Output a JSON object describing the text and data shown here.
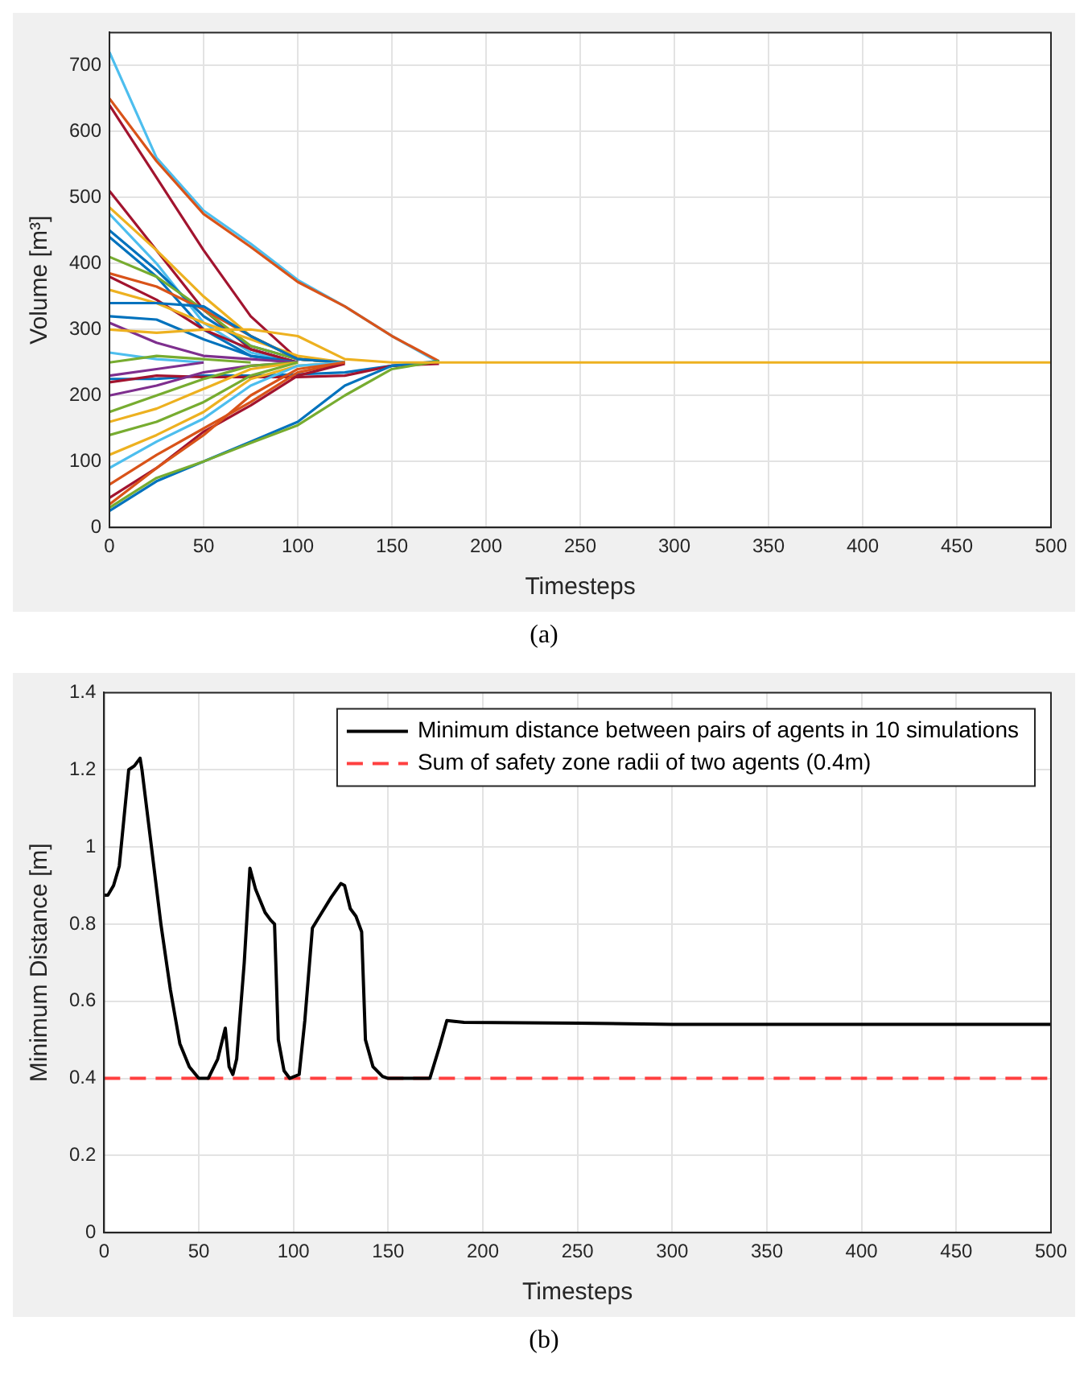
{
  "chart_data": [
    {
      "type": "line",
      "xlabel": "Timesteps",
      "ylabel": "Volume [m³]",
      "annotations": [
        "(a)"
      ],
      "x": [
        0,
        25,
        50,
        75,
        100,
        125,
        150,
        175,
        200,
        500
      ],
      "xlim": [
        0,
        500
      ],
      "xticks": [
        0,
        50,
        100,
        150,
        200,
        250,
        300,
        350,
        400,
        450,
        500
      ],
      "ylim": [
        0,
        750
      ],
      "yticks": [
        0,
        100,
        200,
        300,
        400,
        500,
        600,
        700
      ],
      "grid": true,
      "legend": false,
      "marker": "none",
      "line_style": "solid",
      "series": [
        {
          "color": "#4dbeee",
          "values": [
            720,
            560,
            480,
            430,
            375,
            335,
            290,
            250,
            null,
            null
          ]
        },
        {
          "color": "#d95319",
          "values": [
            650,
            555,
            475,
            425,
            372,
            335,
            290,
            252,
            null,
            null
          ]
        },
        {
          "color": "#a2142f",
          "values": [
            640,
            530,
            420,
            320,
            255,
            250,
            null,
            null,
            null,
            null
          ]
        },
        {
          "color": "#a2142f",
          "values": [
            510,
            420,
            330,
            270,
            250,
            null,
            null,
            null,
            null,
            null
          ]
        },
        {
          "color": "#edb120",
          "values": [
            485,
            420,
            350,
            290,
            255,
            250,
            null,
            null,
            null,
            null
          ]
        },
        {
          "color": "#4dbeee",
          "values": [
            475,
            400,
            310,
            265,
            250,
            null,
            null,
            null,
            null,
            null
          ]
        },
        {
          "color": "#0072bd",
          "values": [
            450,
            390,
            320,
            275,
            255,
            250,
            null,
            null,
            null,
            null
          ]
        },
        {
          "color": "#0072bd",
          "values": [
            440,
            380,
            300,
            260,
            250,
            null,
            null,
            null,
            null,
            null
          ]
        },
        {
          "color": "#77ac30",
          "values": [
            410,
            380,
            330,
            275,
            255,
            250,
            null,
            null,
            null,
            null
          ]
        },
        {
          "color": "#d95319",
          "values": [
            385,
            365,
            330,
            290,
            255,
            250,
            null,
            null,
            null,
            null
          ]
        },
        {
          "color": "#a2142f",
          "values": [
            380,
            345,
            300,
            270,
            250,
            null,
            null,
            null,
            null,
            null
          ]
        },
        {
          "color": "#edb120",
          "values": [
            360,
            340,
            310,
            285,
            260,
            250,
            null,
            null,
            null,
            null
          ]
        },
        {
          "color": "#0072bd",
          "values": [
            340,
            340,
            335,
            290,
            255,
            250,
            null,
            null,
            null,
            null
          ]
        },
        {
          "color": "#0072bd",
          "values": [
            320,
            315,
            285,
            260,
            250,
            null,
            null,
            null,
            null,
            null
          ]
        },
        {
          "color": "#7e2f8e",
          "values": [
            310,
            280,
            260,
            255,
            250,
            null,
            null,
            null,
            null,
            null
          ]
        },
        {
          "color": "#4dbeee",
          "values": [
            265,
            255,
            250,
            null,
            null,
            null,
            null,
            null,
            null,
            null
          ]
        },
        {
          "color": "#77ac30",
          "values": [
            250,
            260,
            255,
            250,
            null,
            null,
            null,
            null,
            null,
            null
          ]
        },
        {
          "color": "#7e2f8e",
          "values": [
            230,
            240,
            250,
            null,
            null,
            null,
            null,
            null,
            null,
            null
          ]
        },
        {
          "color": "#0072bd",
          "values": [
            225,
            225,
            230,
            230,
            232,
            235,
            245,
            250,
            null,
            null
          ]
        },
        {
          "color": "#a2142f",
          "values": [
            220,
            230,
            228,
            228,
            228,
            230,
            245,
            248,
            null,
            null
          ]
        },
        {
          "color": "#7e2f8e",
          "values": [
            200,
            215,
            235,
            245,
            250,
            null,
            null,
            null,
            null,
            null
          ]
        },
        {
          "color": "#77ac30",
          "values": [
            175,
            200,
            225,
            245,
            250,
            null,
            null,
            null,
            null,
            null
          ]
        },
        {
          "color": "#edb120",
          "values": [
            160,
            180,
            210,
            240,
            250,
            null,
            null,
            null,
            null,
            null
          ]
        },
        {
          "color": "#77ac30",
          "values": [
            140,
            160,
            190,
            230,
            250,
            null,
            null,
            null,
            null,
            null
          ]
        },
        {
          "color": "#edb120",
          "values": [
            110,
            140,
            175,
            225,
            245,
            250,
            null,
            null,
            null,
            null
          ]
        },
        {
          "color": "#4dbeee",
          "values": [
            90,
            130,
            165,
            215,
            245,
            250,
            null,
            null,
            null,
            null
          ]
        },
        {
          "color": "#d95319",
          "values": [
            65,
            110,
            150,
            190,
            235,
            250,
            null,
            null,
            null,
            null
          ]
        },
        {
          "color": "#a2142f",
          "values": [
            45,
            90,
            145,
            185,
            230,
            248,
            null,
            null,
            null,
            null
          ]
        },
        {
          "color": "#d95319",
          "values": [
            35,
            90,
            140,
            200,
            240,
            250,
            null,
            null,
            null,
            null
          ]
        },
        {
          "color": "#0072bd",
          "values": [
            25,
            70,
            100,
            130,
            160,
            215,
            245,
            252,
            null,
            null
          ]
        },
        {
          "color": "#77ac30",
          "values": [
            30,
            75,
            100,
            128,
            155,
            200,
            240,
            252,
            null,
            null
          ]
        },
        {
          "color": "#edb120",
          "values": [
            300,
            295,
            300,
            300,
            290,
            255,
            250,
            250,
            250,
            250
          ]
        }
      ]
    },
    {
      "type": "line",
      "xlabel": "Timesteps",
      "ylabel": "Minimum Distance [m]",
      "annotations": [
        "(b)"
      ],
      "xlim": [
        0,
        500
      ],
      "xticks": [
        0,
        50,
        100,
        150,
        200,
        250,
        300,
        350,
        400,
        450,
        500
      ],
      "ylim": [
        0,
        1.4
      ],
      "yticks": [
        0,
        0.2,
        0.4,
        0.6,
        0.8,
        1,
        1.2,
        1.4
      ],
      "grid": true,
      "legend": "top right",
      "marker": "none",
      "line_style": "solid",
      "series": [
        {
          "name": "Minimum distance between pairs of agents in 10 simulations",
          "color": "#000000",
          "x": [
            0,
            2,
            5,
            8,
            13,
            16,
            19,
            20,
            25,
            30,
            35,
            40,
            45,
            50,
            55,
            60,
            64,
            66,
            68,
            70,
            74,
            77,
            80,
            85,
            88,
            90,
            92,
            95,
            98,
            103,
            106,
            110,
            115,
            120,
            125,
            127,
            130,
            133,
            136,
            138,
            142,
            147,
            150,
            172,
            177,
            181,
            190,
            250,
            300,
            400,
            500
          ],
          "values": [
            0.875,
            0.875,
            0.9,
            0.95,
            1.2,
            1.21,
            1.23,
            1.2,
            1.0,
            0.8,
            0.63,
            0.49,
            0.43,
            0.4,
            0.4,
            0.45,
            0.53,
            0.43,
            0.41,
            0.45,
            0.7,
            0.945,
            0.89,
            0.83,
            0.81,
            0.8,
            0.5,
            0.42,
            0.4,
            0.41,
            0.55,
            0.79,
            0.83,
            0.87,
            0.905,
            0.9,
            0.84,
            0.82,
            0.78,
            0.5,
            0.43,
            0.405,
            0.4,
            0.4,
            0.48,
            0.55,
            0.545,
            0.543,
            0.54,
            0.54,
            0.54
          ]
        }
      ],
      "ref_lines": [
        {
          "axis": "y",
          "value": 0.4,
          "label": "Sum of safety zone radii of two agents (0.4m)",
          "color": "#ff4040",
          "line_style": "dashed"
        }
      ]
    }
  ]
}
